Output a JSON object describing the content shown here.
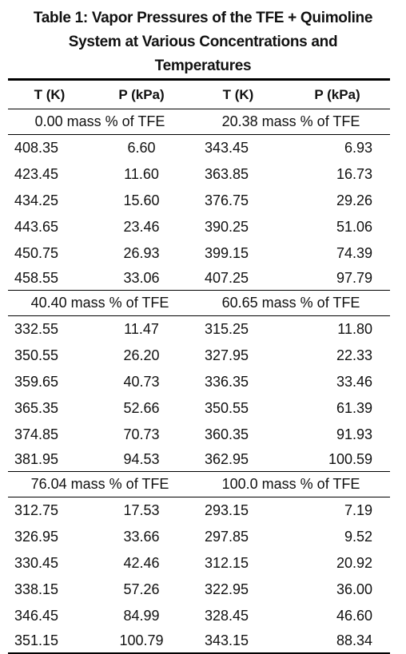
{
  "caption": {
    "line1": "Table 1: Vapor Pressures of the TFE + Quimoline",
    "line2": "System at Various Concentrations and",
    "line3": "Temperatures"
  },
  "headers": [
    "T (K)",
    "P (kPa)",
    "T (K)",
    "P (kPa)"
  ],
  "blocks": [
    {
      "left_label": "0.00 mass % of TFE",
      "right_label": "20.38 mass % of TFE",
      "rows": [
        [
          "408.35",
          "6.60",
          "343.45",
          "6.93"
        ],
        [
          "423.45",
          "11.60",
          "363.85",
          "16.73"
        ],
        [
          "434.25",
          "15.60",
          "376.75",
          "29.26"
        ],
        [
          "443.65",
          "23.46",
          "390.25",
          "51.06"
        ],
        [
          "450.75",
          "26.93",
          "399.15",
          "74.39"
        ],
        [
          "458.55",
          "33.06",
          "407.25",
          "97.79"
        ]
      ]
    },
    {
      "left_label": "40.40 mass % of TFE",
      "right_label": "60.65 mass % of TFE",
      "rows": [
        [
          "332.55",
          "11.47",
          "315.25",
          "11.80"
        ],
        [
          "350.55",
          "26.20",
          "327.95",
          "22.33"
        ],
        [
          "359.65",
          "40.73",
          "336.35",
          "33.46"
        ],
        [
          "365.35",
          "52.66",
          "350.55",
          "61.39"
        ],
        [
          "374.85",
          "70.73",
          "360.35",
          "91.93"
        ],
        [
          "381.95",
          "94.53",
          "362.95",
          "100.59"
        ]
      ]
    },
    {
      "left_label": "76.04 mass % of TFE",
      "right_label": "100.0 mass % of TFE",
      "rows": [
        [
          "312.75",
          "17.53",
          "293.15",
          "7.19"
        ],
        [
          "326.95",
          "33.66",
          "297.85",
          "9.52"
        ],
        [
          "330.45",
          "42.46",
          "312.15",
          "20.92"
        ],
        [
          "338.15",
          "57.26",
          "322.95",
          "36.00"
        ],
        [
          "346.45",
          "84.99",
          "328.45",
          "46.60"
        ],
        [
          "351.15",
          "100.79",
          "343.15",
          "88.34"
        ]
      ]
    }
  ]
}
